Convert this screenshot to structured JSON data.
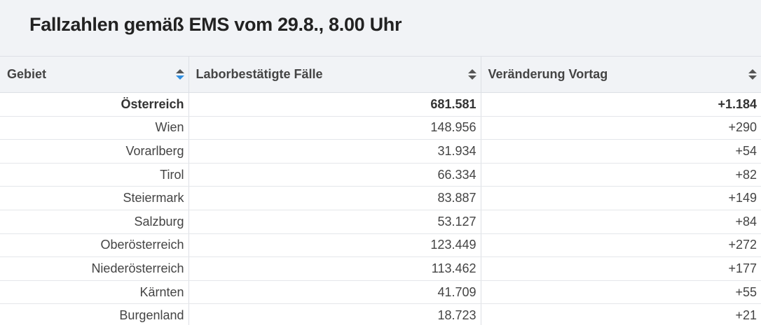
{
  "title": "Fallzahlen gemäß EMS vom 29.8., 8.00 Uhr",
  "columns": [
    {
      "label": "Gebiet"
    },
    {
      "label": "Laborbestätigte Fälle"
    },
    {
      "label": "Veränderung Vortag"
    }
  ],
  "rows": [
    {
      "gebiet": "Österreich",
      "faelle": "681.581",
      "veraenderung": "+1.184",
      "bold": true
    },
    {
      "gebiet": "Wien",
      "faelle": "148.956",
      "veraenderung": "+290"
    },
    {
      "gebiet": "Vorarlberg",
      "faelle": "31.934",
      "veraenderung": "+54"
    },
    {
      "gebiet": "Tirol",
      "faelle": "66.334",
      "veraenderung": "+82"
    },
    {
      "gebiet": "Steiermark",
      "faelle": "83.887",
      "veraenderung": "+149"
    },
    {
      "gebiet": "Salzburg",
      "faelle": "53.127",
      "veraenderung": "+84"
    },
    {
      "gebiet": "Oberösterreich",
      "faelle": "123.449",
      "veraenderung": "+272"
    },
    {
      "gebiet": "Niederösterreich",
      "faelle": "113.462",
      "veraenderung": "+177"
    },
    {
      "gebiet": "Kärnten",
      "faelle": "41.709",
      "veraenderung": "+55"
    },
    {
      "gebiet": "Burgenland",
      "faelle": "18.723",
      "veraenderung": "+21"
    }
  ],
  "colors": {
    "sort_active": "#2f8ee0",
    "header_bg": "#f1f3f6"
  }
}
